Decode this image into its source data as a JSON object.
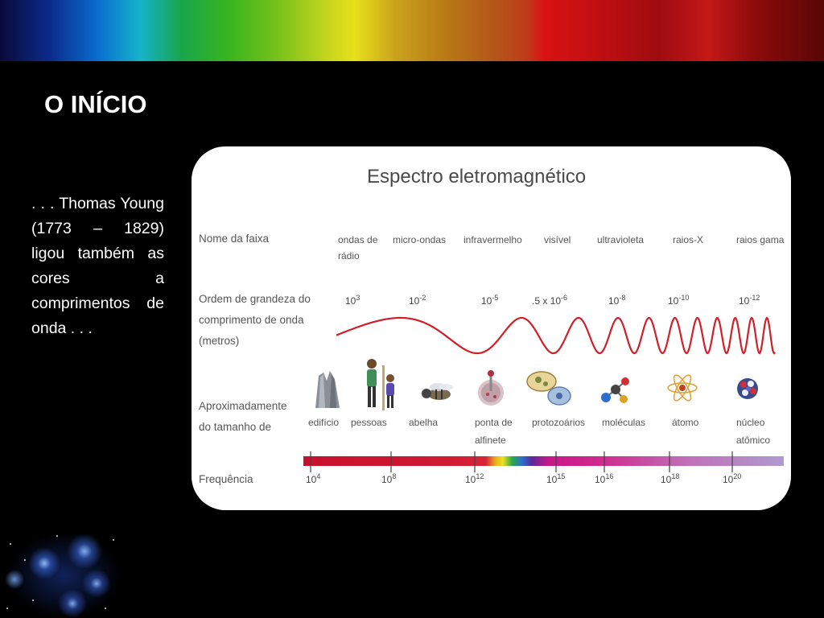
{
  "slide": {
    "title": "O INÍCIO",
    "body": ". . . Thomas Young (1773 – 1829) ligou também as cores a comprimentos de onda . . ."
  },
  "diagram": {
    "title": "Espectro eletromagnético",
    "row_band_name": "Nome da faixa",
    "row_wavelength": [
      "Ordem de grandeza do",
      "comprimento de onda",
      "(metros)"
    ],
    "row_size": [
      "Aproximadamente",
      "do tamanho de"
    ],
    "row_frequency": "Frequência",
    "bands": [
      {
        "name": "ondas de",
        "name2": "rádio"
      },
      {
        "name": "micro-ondas",
        "name2": ""
      },
      {
        "name": "infravermelho",
        "name2": ""
      },
      {
        "name": "visível",
        "name2": ""
      },
      {
        "name": "ultravioleta",
        "name2": ""
      },
      {
        "name": "raios-X",
        "name2": ""
      },
      {
        "name": "raios gama",
        "name2": ""
      }
    ],
    "wavelengths": [
      {
        "prefix": "",
        "base": "10",
        "exp": "3"
      },
      {
        "prefix": "",
        "base": "10",
        "exp": "-2"
      },
      {
        "prefix": "",
        "base": "10",
        "exp": "-5"
      },
      {
        "prefix": ".5 x ",
        "base": "10",
        "exp": "-6"
      },
      {
        "prefix": "",
        "base": "10",
        "exp": "-8"
      },
      {
        "prefix": "",
        "base": "10",
        "exp": "-10"
      },
      {
        "prefix": "",
        "base": "10",
        "exp": "-12"
      }
    ],
    "objects": [
      {
        "label": "edifício",
        "label2": "",
        "icon": "building-icon"
      },
      {
        "label": "pessoas",
        "label2": "",
        "icon": "people-icon"
      },
      {
        "label": "abelha",
        "label2": "",
        "icon": "bee-icon"
      },
      {
        "label": "ponta de",
        "label2": "alfinete",
        "icon": "pin-icon"
      },
      {
        "label": "protozoários",
        "label2": "",
        "icon": "protozoa-icon"
      },
      {
        "label": "moléculas",
        "label2": "",
        "icon": "molecule-icon"
      },
      {
        "label": "átomo",
        "label2": "",
        "icon": "atom-icon"
      },
      {
        "label": "núcleo",
        "label2": "atômico",
        "icon": "nucleus-icon"
      }
    ],
    "frequencies": [
      {
        "base": "10",
        "exp": "4"
      },
      {
        "base": "10",
        "exp": "8"
      },
      {
        "base": "10",
        "exp": "12"
      },
      {
        "base": "10",
        "exp": "15"
      },
      {
        "base": "10",
        "exp": "16"
      },
      {
        "base": "10",
        "exp": "18"
      },
      {
        "base": "10",
        "exp": "20"
      }
    ],
    "colors": {
      "wave": "#d11f2a",
      "title": "#4a4a4a",
      "text": "#555555"
    }
  }
}
